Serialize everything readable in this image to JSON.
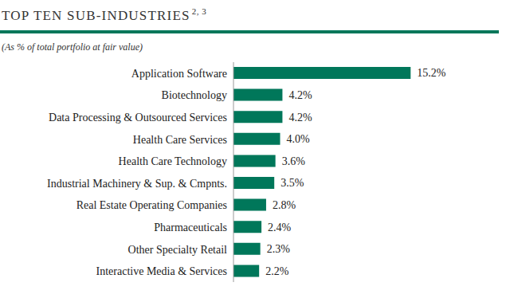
{
  "chart_data": {
    "type": "bar",
    "orientation": "horizontal",
    "title": "TOP TEN SUB-INDUSTRIES",
    "title_superscript": "2, 3",
    "subtitle": "(As % of total portfolio at fair value)",
    "categories": [
      "Application Software",
      "Biotechnology",
      "Data Processing & Outsourced Services",
      "Health Care Services",
      "Health Care Technology",
      "Industrial Machinery & Sup. & Cmpnts.",
      "Real Estate Operating Companies",
      "Pharmaceuticals",
      "Other Specialty Retail",
      "Interactive Media & Services"
    ],
    "values": [
      15.2,
      4.2,
      4.2,
      4.0,
      3.6,
      3.5,
      2.8,
      2.4,
      2.3,
      2.2
    ],
    "value_labels": [
      "15.2%",
      "4.2%",
      "4.2%",
      "4.0%",
      "3.6%",
      "3.5%",
      "2.8%",
      "2.4%",
      "2.3%",
      "2.2%"
    ],
    "color": "#00775a",
    "xlim": [
      0,
      16
    ],
    "data_labels": true,
    "tick_labels": "y",
    "grid": false
  }
}
